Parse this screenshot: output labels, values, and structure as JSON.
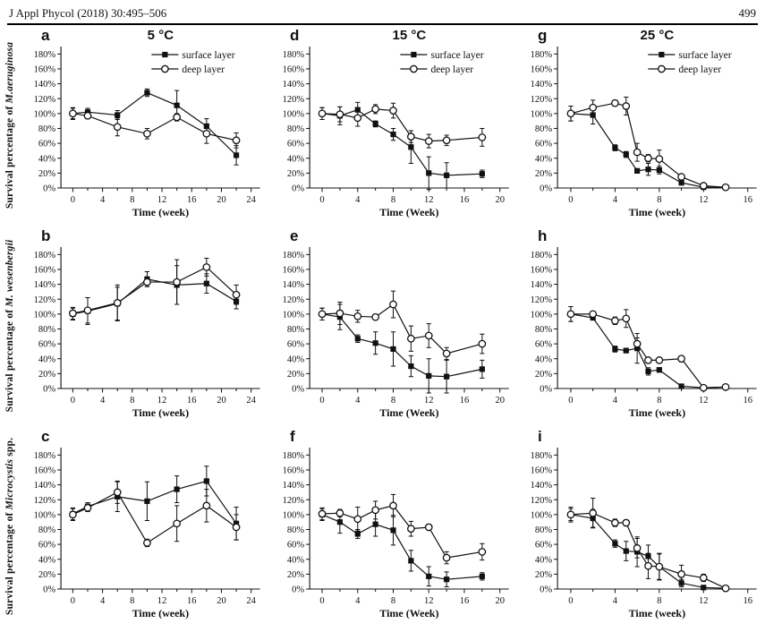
{
  "header": {
    "journal": "J Appl Phycol (2018) 30:495–506",
    "page": "499"
  },
  "rows": [
    {
      "prefix": "Survival percentage of ",
      "species": "M.aeruginosa",
      "suffix": ""
    },
    {
      "prefix": "Survival percentage of ",
      "species": "M. wesenbergii",
      "suffix": ""
    },
    {
      "prefix": "Survival percentage of ",
      "species": "Microcystis",
      "suffix": " spp."
    }
  ],
  "legend": {
    "surface": "surface layer",
    "deep": "deep layer"
  },
  "colors": {
    "ink": "#111111",
    "background": "#ffffff"
  },
  "chart_data": [
    {
      "type": "line",
      "panel": "a",
      "title": "5 °C",
      "xlabel": "Time (week)",
      "ylabel": "Survival percentage of M.aeruginosa (%)",
      "xlim": [
        -1.6,
        25.2
      ],
      "xticks": [
        0,
        4,
        8,
        12,
        16,
        20,
        24
      ],
      "xminor_step": 2,
      "ylim": [
        0,
        190
      ],
      "yticks": [
        0,
        20,
        40,
        60,
        80,
        100,
        120,
        140,
        160,
        180
      ],
      "ytick_suffix": "%",
      "legend": true,
      "series": [
        {
          "name": "surface layer",
          "marker": "filled-square",
          "x": [
            0,
            2,
            6,
            10,
            14,
            18,
            22
          ],
          "y": [
            100,
            102,
            98,
            128,
            111,
            83,
            44
          ],
          "err": [
            8,
            5,
            6,
            5,
            20,
            10,
            13
          ]
        },
        {
          "name": "deep layer",
          "marker": "open-circle",
          "x": [
            0,
            2,
            6,
            10,
            14,
            18,
            22
          ],
          "y": [
            100,
            97,
            82,
            73,
            95,
            73,
            64
          ],
          "err": [
            7,
            4,
            12,
            7,
            5,
            13,
            10
          ]
        }
      ]
    },
    {
      "type": "line",
      "panel": "b",
      "title": null,
      "xlabel": "Time (week)",
      "ylabel": "Survival percentage of M. wesenbergii (%)",
      "xlim": [
        -1.6,
        25.2
      ],
      "xticks": [
        0,
        4,
        8,
        12,
        16,
        20,
        24
      ],
      "xminor_step": 2,
      "ylim": [
        0,
        190
      ],
      "yticks": [
        0,
        20,
        40,
        60,
        80,
        100,
        120,
        140,
        160,
        180
      ],
      "ytick_suffix": "%",
      "legend": false,
      "series": [
        {
          "name": "surface layer",
          "marker": "filled-square",
          "x": [
            0,
            2,
            6,
            10,
            14,
            18,
            22
          ],
          "y": [
            100,
            104,
            114,
            147,
            139,
            141,
            117
          ],
          "err": [
            8,
            18,
            22,
            10,
            26,
            13,
            10
          ]
        },
        {
          "name": "deep layer",
          "marker": "open-circle",
          "x": [
            0,
            2,
            6,
            10,
            14,
            18,
            22
          ],
          "y": [
            101,
            105,
            115,
            143,
            143,
            163,
            126
          ],
          "err": [
            8,
            17,
            24,
            6,
            30,
            12,
            13
          ]
        }
      ]
    },
    {
      "type": "line",
      "panel": "c",
      "title": null,
      "xlabel": "Time (week)",
      "ylabel": "Survival percentage of Microcystis spp. (%)",
      "xlim": [
        -1.6,
        25.2
      ],
      "xticks": [
        0,
        4,
        8,
        12,
        16,
        20,
        24
      ],
      "xminor_step": 2,
      "ylim": [
        0,
        190
      ],
      "yticks": [
        0,
        20,
        40,
        60,
        80,
        100,
        120,
        140,
        160,
        180
      ],
      "ytick_suffix": "%",
      "legend": false,
      "series": [
        {
          "name": "surface layer",
          "marker": "filled-square",
          "x": [
            0,
            2,
            6,
            10,
            14,
            18,
            22
          ],
          "y": [
            101,
            111,
            124,
            118,
            134,
            145,
            88
          ],
          "err": [
            8,
            5,
            20,
            26,
            18,
            20,
            22
          ]
        },
        {
          "name": "deep layer",
          "marker": "open-circle",
          "x": [
            0,
            2,
            6,
            10,
            14,
            18,
            22
          ],
          "y": [
            100,
            109,
            130,
            62,
            88,
            112,
            83
          ],
          "err": [
            8,
            5,
            15,
            5,
            24,
            22,
            17
          ]
        }
      ]
    },
    {
      "type": "line",
      "panel": "d",
      "title": "15 °C",
      "xlabel": "Time (Week)",
      "ylabel": "Survival percentage of M.aeruginosa (%)",
      "xlim": [
        -1.4,
        21
      ],
      "xticks": [
        0,
        4,
        8,
        12,
        16,
        20
      ],
      "xminor_step": 2,
      "ylim": [
        0,
        190
      ],
      "yticks": [
        0,
        20,
        40,
        60,
        80,
        100,
        120,
        140,
        160,
        180
      ],
      "ytick_suffix": "%",
      "legend": true,
      "series": [
        {
          "name": "surface layer",
          "marker": "filled-square",
          "x": [
            0,
            2,
            4,
            6,
            8,
            10,
            12,
            14,
            18
          ],
          "y": [
            100,
            97,
            105,
            86,
            72,
            55,
            20,
            17,
            19
          ],
          "err": [
            8,
            12,
            10,
            4,
            8,
            22,
            22,
            17,
            5
          ]
        },
        {
          "name": "deep layer",
          "marker": "open-circle",
          "x": [
            0,
            2,
            4,
            6,
            8,
            10,
            12,
            14,
            18
          ],
          "y": [
            100,
            99,
            94,
            106,
            104,
            69,
            63,
            64,
            68
          ],
          "err": [
            8,
            10,
            11,
            6,
            10,
            8,
            9,
            7,
            12
          ]
        }
      ]
    },
    {
      "type": "line",
      "panel": "e",
      "title": null,
      "xlabel": "Time (Week)",
      "ylabel": "Survival percentage of M. wesenbergii (%)",
      "xlim": [
        -1.4,
        21
      ],
      "xticks": [
        0,
        4,
        8,
        12,
        16,
        20
      ],
      "xminor_step": 2,
      "ylim": [
        0,
        190
      ],
      "yticks": [
        0,
        20,
        40,
        60,
        80,
        100,
        120,
        140,
        160,
        180
      ],
      "ytick_suffix": "%",
      "legend": false,
      "series": [
        {
          "name": "surface layer",
          "marker": "filled-square",
          "x": [
            0,
            2,
            4,
            6,
            8,
            10,
            12,
            14,
            18
          ],
          "y": [
            100,
            96,
            67,
            61,
            53,
            30,
            17,
            16,
            26
          ],
          "err": [
            8,
            17,
            5,
            15,
            23,
            14,
            23,
            22,
            12
          ]
        },
        {
          "name": "deep layer",
          "marker": "open-circle",
          "x": [
            0,
            2,
            4,
            6,
            8,
            10,
            12,
            14,
            18
          ],
          "y": [
            100,
            101,
            97,
            96,
            113,
            67,
            71,
            47,
            60
          ],
          "err": [
            8,
            15,
            8,
            3,
            18,
            17,
            16,
            8,
            13
          ]
        }
      ]
    },
    {
      "type": "line",
      "panel": "f",
      "title": null,
      "xlabel": "Time (Week)",
      "ylabel": "Survival percentage of Microcystis spp. (%)",
      "xlim": [
        -1.4,
        21
      ],
      "xticks": [
        0,
        4,
        8,
        12,
        16,
        20
      ],
      "xminor_step": 2,
      "ylim": [
        0,
        190
      ],
      "yticks": [
        0,
        20,
        40,
        60,
        80,
        100,
        120,
        140,
        160,
        180
      ],
      "ytick_suffix": "%",
      "legend": false,
      "series": [
        {
          "name": "surface layer",
          "marker": "filled-square",
          "x": [
            0,
            2,
            4,
            6,
            8,
            10,
            12,
            14,
            18
          ],
          "y": [
            100,
            90,
            74,
            87,
            79,
            38,
            17,
            13,
            17
          ],
          "err": [
            8,
            15,
            6,
            16,
            20,
            14,
            13,
            10,
            5
          ]
        },
        {
          "name": "deep layer",
          "marker": "open-circle",
          "x": [
            0,
            2,
            4,
            6,
            8,
            10,
            12,
            14,
            18
          ],
          "y": [
            101,
            102,
            94,
            106,
            112,
            81,
            83,
            42,
            50
          ],
          "err": [
            8,
            5,
            16,
            12,
            15,
            10,
            4,
            8,
            11
          ]
        }
      ]
    },
    {
      "type": "line",
      "panel": "g",
      "title": "25 °C",
      "xlabel": "Time (week)",
      "ylabel": "Survival percentage of M.aeruginosa (%)",
      "xlim": [
        -1.2,
        16.8
      ],
      "xticks": [
        0,
        4,
        8,
        12,
        16
      ],
      "xminor_step": 2,
      "ylim": [
        0,
        190
      ],
      "yticks": [
        0,
        20,
        40,
        60,
        80,
        100,
        120,
        140,
        160,
        180
      ],
      "ytick_suffix": "%",
      "legend": true,
      "series": [
        {
          "name": "surface layer",
          "marker": "filled-square",
          "x": [
            0,
            2,
            4,
            5,
            6,
            7,
            8,
            10,
            12,
            14
          ],
          "y": [
            100,
            98,
            54,
            45,
            23,
            25,
            24,
            7,
            1,
            1
          ],
          "err": [
            10,
            12,
            4,
            4,
            3,
            8,
            5,
            3,
            1,
            1
          ]
        },
        {
          "name": "deep layer",
          "marker": "open-circle",
          "x": [
            0,
            2,
            4,
            5,
            6,
            7,
            8,
            10,
            12,
            14
          ],
          "y": [
            100,
            108,
            114,
            110,
            48,
            40,
            39,
            15,
            3,
            1
          ],
          "err": [
            10,
            10,
            4,
            12,
            12,
            5,
            12,
            3,
            2,
            1
          ]
        }
      ]
    },
    {
      "type": "line",
      "panel": "h",
      "title": null,
      "xlabel": "Time (week)",
      "ylabel": "Survival percentage of M. wesenbergii (%)",
      "xlim": [
        -1.2,
        16.8
      ],
      "xticks": [
        0,
        4,
        8,
        12,
        16
      ],
      "xminor_step": 2,
      "ylim": [
        0,
        190
      ],
      "yticks": [
        0,
        20,
        40,
        60,
        80,
        100,
        120,
        140,
        160,
        180
      ],
      "ytick_suffix": "%",
      "legend": false,
      "series": [
        {
          "name": "surface layer",
          "marker": "filled-square",
          "x": [
            0,
            2,
            4,
            5,
            6,
            7,
            8,
            10,
            12,
            14
          ],
          "y": [
            100,
            95,
            53,
            51,
            54,
            23,
            25,
            3,
            1,
            2
          ],
          "err": [
            10,
            3,
            4,
            3,
            20,
            5,
            3,
            2,
            1,
            1
          ]
        },
        {
          "name": "deep layer",
          "marker": "open-circle",
          "x": [
            0,
            2,
            4,
            5,
            6,
            7,
            8,
            10,
            12,
            14
          ],
          "y": [
            100,
            100,
            91,
            94,
            60,
            38,
            38,
            40,
            1,
            2
          ],
          "err": [
            10,
            3,
            5,
            12,
            8,
            3,
            3,
            3,
            1,
            1
          ]
        }
      ]
    },
    {
      "type": "line",
      "panel": "i",
      "title": null,
      "xlabel": "Time (week)",
      "ylabel": "Survival percentage of Microcystis spp. (%)",
      "xlim": [
        -1.2,
        16.8
      ],
      "xticks": [
        0,
        4,
        8,
        12,
        16
      ],
      "xminor_step": 2,
      "ylim": [
        0,
        190
      ],
      "yticks": [
        0,
        20,
        40,
        60,
        80,
        100,
        120,
        140,
        160,
        180
      ],
      "ytick_suffix": "%",
      "legend": false,
      "series": [
        {
          "name": "surface layer",
          "marker": "filled-square",
          "x": [
            0,
            2,
            4,
            5,
            6,
            7,
            8,
            10,
            12,
            14
          ],
          "y": [
            100,
            95,
            61,
            51,
            50,
            44,
            30,
            8,
            2,
            1
          ],
          "err": [
            10,
            12,
            5,
            13,
            20,
            15,
            17,
            5,
            2,
            1
          ]
        },
        {
          "name": "deep layer",
          "marker": "open-circle",
          "x": [
            0,
            2,
            4,
            5,
            6,
            7,
            8,
            10,
            12,
            14
          ],
          "y": [
            100,
            102,
            89,
            89,
            55,
            31,
            30,
            20,
            15,
            1
          ],
          "err": [
            8,
            20,
            5,
            3,
            13,
            17,
            18,
            12,
            5,
            1
          ]
        }
      ]
    }
  ]
}
